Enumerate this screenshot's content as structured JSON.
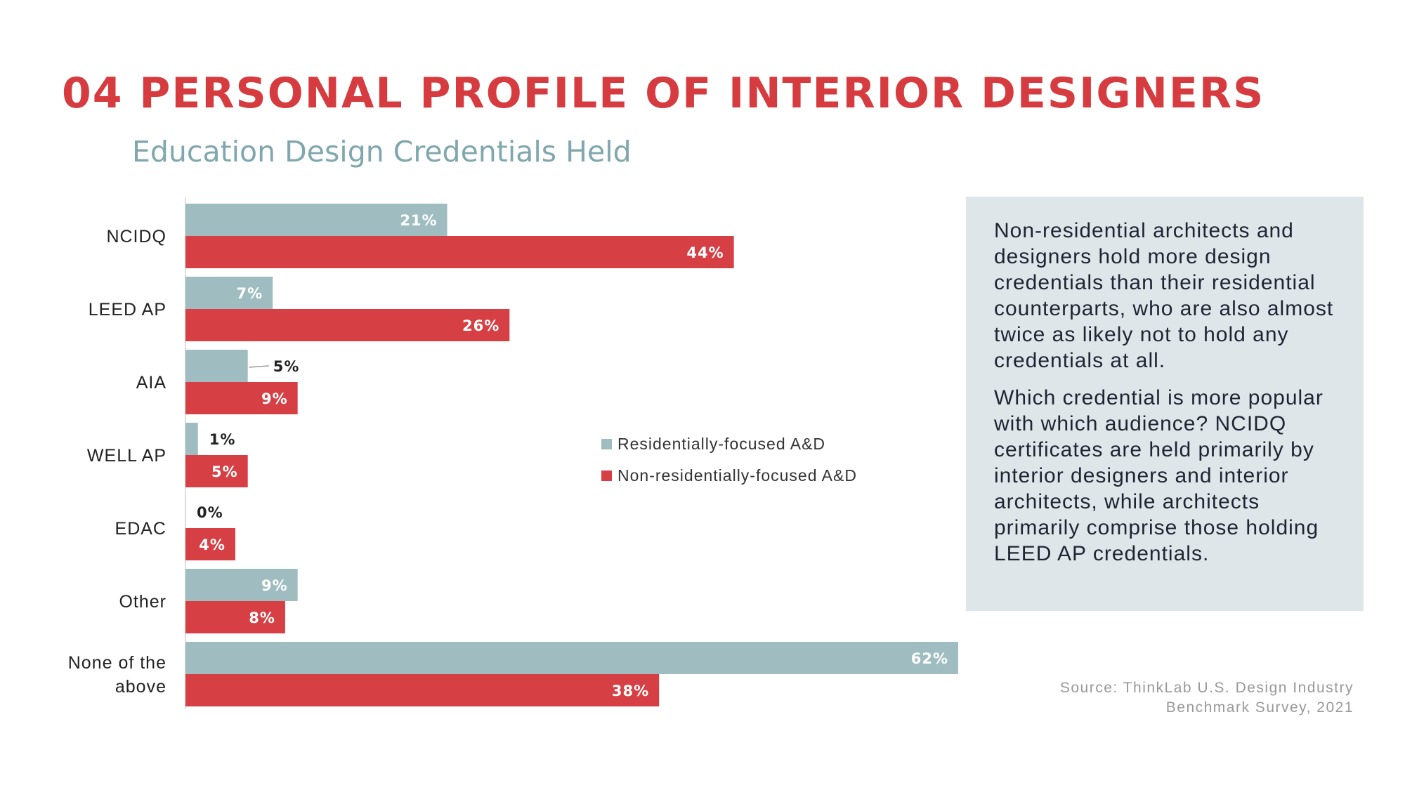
{
  "header": {
    "title": "04 PERSONAL PROFILE OF INTERIOR DESIGNERS",
    "subtitle": "Education Design Credentials Held"
  },
  "chart_data": {
    "type": "bar",
    "orientation": "horizontal",
    "title": "Education Design Credentials Held",
    "categories": [
      "NCIDQ",
      "LEED AP",
      "AIA",
      "WELL AP",
      "EDAC",
      "Other",
      "None of the above"
    ],
    "series": [
      {
        "name": "Residentially-focused A&D",
        "color": "#9fbdc1",
        "values": [
          21,
          7,
          5,
          1,
          0,
          9,
          62
        ]
      },
      {
        "name": "Non-residentially-focused A&D",
        "color": "#d64045",
        "values": [
          44,
          26,
          9,
          5,
          4,
          8,
          38
        ]
      }
    ],
    "unit": "%",
    "xlim": [
      0,
      62
    ],
    "grid": false,
    "legend_position": "center-right"
  },
  "sidebar": {
    "paragraphs": [
      "Non-residential architects and designers hold more design credentials than their residential counterparts, who are also almost twice as likely not to hold any credentials at all.",
      "Which credential is more popular with which audience? NCIDQ certificates are held primarily by interior designers and interior architects, while architects primarily comprise those holding LEED AP credentials."
    ]
  },
  "footer": {
    "source_line1": "Source: ThinkLab U.S. Design Industry",
    "source_line2": "Benchmark Survey, 2021"
  },
  "colors": {
    "title": "#d63c3f",
    "subtitle": "#7fa7ad",
    "panel": "#dfe6e9"
  }
}
